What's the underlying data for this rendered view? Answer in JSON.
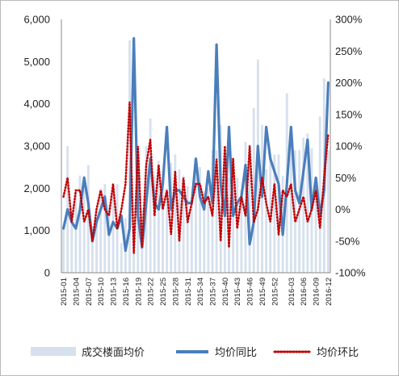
{
  "chart_data": {
    "type": "bar",
    "title": "",
    "xlabel": "",
    "ylabel": "",
    "ylim_left": [
      0,
      6000
    ],
    "ylim_right": [
      -100,
      300
    ],
    "grid": false,
    "legend_placement": "bottom",
    "left_ticks": [
      "0",
      "1,000",
      "2,000",
      "3,000",
      "4,000",
      "5,000",
      "6,000"
    ],
    "right_ticks": [
      "-100%",
      "-50%",
      "0%",
      "50%",
      "100%",
      "150%",
      "200%",
      "250%",
      "300%"
    ],
    "categories": [
      "2015-01",
      "2015-02",
      "2015-03",
      "2015-04",
      "2015-05",
      "2015-06",
      "2015-07",
      "2015-08",
      "2015-09",
      "2015-10",
      "2015-11",
      "2015-12",
      "2015-13",
      "2015-14",
      "2015-15",
      "2015-16",
      "2015-17",
      "2015-18",
      "2015-19",
      "2015-20",
      "2015-21",
      "2015-22",
      "2015-23",
      "2015-24",
      "2015-25",
      "2015-26",
      "2015-27",
      "2015-28",
      "2015-29",
      "2015-30",
      "2015-31",
      "2015-32",
      "2015-33",
      "2015-34",
      "2015-35",
      "2015-36",
      "2015-37",
      "2015-38",
      "2015-39",
      "2015-40",
      "2015-41",
      "2015-42",
      "2015-43",
      "2015-44",
      "2015-45",
      "2015-46",
      "2015-47",
      "2015-48",
      "2015-49",
      "2015-50",
      "2015-51",
      "2015-52",
      "2015-53",
      "2016-01",
      "2016-02",
      "2016-03",
      "2016-04",
      "2016-05",
      "2016-06",
      "2016-07",
      "2016-08",
      "2016-09",
      "2016-10",
      "2016-11",
      "2016-12"
    ],
    "tick_labels": [
      "2015-01",
      "2015-04",
      "2015-07",
      "2015-10",
      "2015-13",
      "2015-16",
      "2015-19",
      "2015-22",
      "2015-25",
      "2015-28",
      "2015-31",
      "2015-34",
      "2015-37",
      "2015-40",
      "2015-43",
      "2015-46",
      "2015-49",
      "2015-52",
      "2016-03",
      "2016-06",
      "2016-09",
      "2016-12"
    ],
    "series": [
      {
        "name": "成交楼面均价",
        "type": "bar",
        "axis": "left",
        "color": "#d6e0ee",
        "values": [
          1100,
          3000,
          1200,
          1900,
          2300,
          2300,
          2550,
          1100,
          1300,
          2000,
          2100,
          1600,
          1850,
          2100,
          700,
          1300,
          5500,
          1100,
          2400,
          1500,
          3000,
          3650,
          2300,
          2650,
          2100,
          2000,
          2600,
          2800,
          2450,
          2300,
          2050,
          1700,
          2400,
          2500,
          1900,
          2000,
          2900,
          2900,
          3500,
          2700,
          2250,
          2700,
          2250,
          1950,
          3100,
          2600,
          3900,
          5050,
          3500,
          2450,
          2800,
          2800,
          2800,
          2300,
          4250,
          3350,
          2900,
          2900,
          3200,
          3300,
          2950,
          2000,
          3700,
          4600,
          2900
        ]
      },
      {
        "name": "均价同比",
        "type": "line",
        "axis": "right",
        "color": "#4a7ebb",
        "values": [
          -30,
          0,
          -20,
          -30,
          0,
          50,
          10,
          -50,
          -20,
          0,
          20,
          -40,
          -20,
          -30,
          -10,
          -65,
          -30,
          270,
          -10,
          -60,
          10,
          80,
          10,
          0,
          40,
          130,
          0,
          30,
          30,
          20,
          10,
          10,
          80,
          20,
          0,
          60,
          10,
          260,
          40,
          -10,
          130,
          -10,
          10,
          20,
          70,
          -55,
          -20,
          100,
          20,
          130,
          80,
          60,
          40,
          -40,
          40,
          130,
          30,
          10,
          60,
          110,
          0,
          50,
          -10,
          30,
          200
        ]
      },
      {
        "name": "均价环比",
        "type": "line",
        "axis": "right",
        "color": "#c00000",
        "values": [
          20,
          50,
          -20,
          30,
          30,
          -20,
          0,
          -50,
          0,
          30,
          0,
          -10,
          40,
          -30,
          0,
          40,
          170,
          -70,
          100,
          -60,
          70,
          110,
          -10,
          70,
          0,
          30,
          -40,
          60,
          -50,
          50,
          -20,
          10,
          40,
          40,
          10,
          20,
          -10,
          80,
          -50,
          100,
          -60,
          80,
          -30,
          20,
          -10,
          100,
          -20,
          0,
          50,
          10,
          -20,
          40,
          -40,
          30,
          20,
          40,
          -20,
          0,
          20,
          -20,
          0,
          30,
          -30,
          50,
          120
        ]
      }
    ]
  },
  "legend": {
    "items": [
      {
        "label": "成交楼面均价",
        "color": "#d6e0ee"
      },
      {
        "label": "均价同比",
        "color": "#4a7ebb"
      },
      {
        "label": "均价环比",
        "color": "#c00000"
      }
    ]
  }
}
